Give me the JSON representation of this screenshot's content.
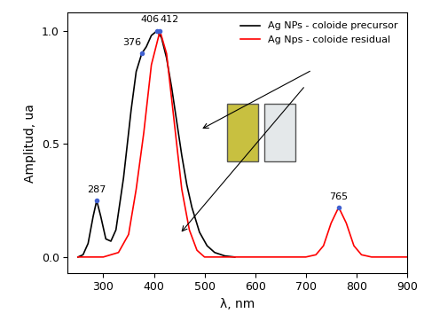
{
  "chart_data": {
    "type": "line",
    "xlabel": "λ, nm",
    "ylabel": "Amplitud, ua",
    "xlim": [
      230,
      900
    ],
    "ylim": [
      -0.07,
      1.08
    ],
    "xticks": [
      300,
      400,
      500,
      600,
      700,
      800,
      900
    ],
    "yticks": [
      {
        "value": 0,
        "label": "0.0"
      },
      {
        "value": 0.5,
        "label": "0.5"
      },
      {
        "value": 1.0,
        "label": "1.0"
      }
    ],
    "grid": false,
    "legend": "upper right",
    "series": [
      {
        "name": "Ag NPs - coloide precursor",
        "color": "#000000",
        "x": [
          250,
          260,
          270,
          280,
          287,
          295,
          305,
          315,
          325,
          340,
          355,
          365,
          376,
          385,
          395,
          406,
          415,
          425,
          435,
          445,
          455,
          465,
          475,
          490,
          505,
          520,
          540,
          560
        ],
        "values": [
          0,
          0.01,
          0.06,
          0.18,
          0.25,
          0.18,
          0.08,
          0.07,
          0.12,
          0.35,
          0.65,
          0.82,
          0.9,
          0.93,
          0.98,
          1.0,
          0.97,
          0.88,
          0.75,
          0.6,
          0.45,
          0.32,
          0.22,
          0.11,
          0.05,
          0.02,
          0.005,
          0
        ]
      },
      {
        "name": "Ag Nps - coloide residual",
        "color": "#ff0000",
        "x": [
          250,
          300,
          330,
          350,
          365,
          380,
          395,
          412,
          425,
          440,
          455,
          470,
          485,
          500,
          550,
          650,
          700,
          720,
          735,
          750,
          765,
          780,
          795,
          810,
          830,
          900
        ],
        "values": [
          0,
          0,
          0.02,
          0.1,
          0.3,
          0.55,
          0.85,
          1.0,
          0.9,
          0.6,
          0.3,
          0.12,
          0.03,
          0.0,
          0,
          0,
          0,
          0.01,
          0.05,
          0.15,
          0.22,
          0.15,
          0.05,
          0.01,
          0,
          0
        ]
      }
    ],
    "annotations": [
      {
        "text": "287",
        "x": 287,
        "y": 0.25
      },
      {
        "text": "376",
        "x": 376,
        "y": 0.9
      },
      {
        "text": "406",
        "x": 406,
        "y": 1.0
      },
      {
        "text": "412",
        "x": 412,
        "y": 1.0
      },
      {
        "text": "765",
        "x": 765,
        "y": 0.22
      }
    ]
  }
}
